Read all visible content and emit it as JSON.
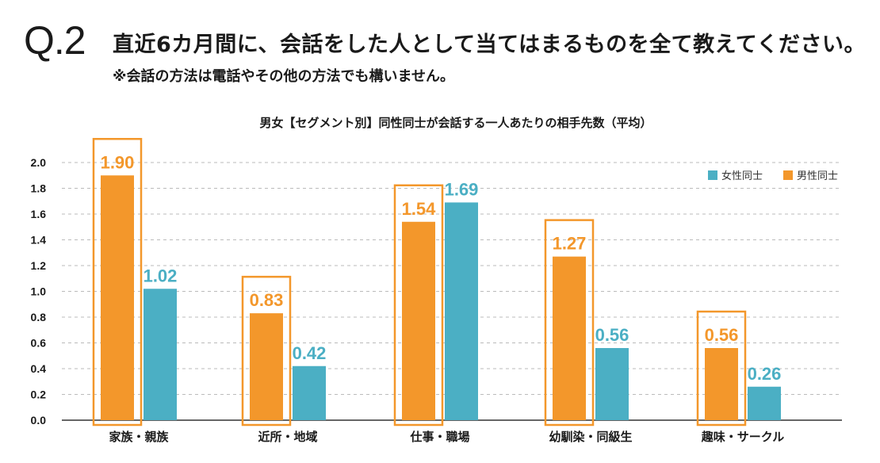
{
  "header": {
    "q_label": "Q.2",
    "question": "直近6カ月間に、会話をした人として当てはまるものを全て教えてください。",
    "note": "※会話の方法は電話やその他の方法でも構いません。"
  },
  "colors": {
    "female": "#4bafc4",
    "male": "#f3972b",
    "highlight_box": "#f3972b",
    "grid": "#bbbbbb",
    "axis": "#333333"
  },
  "chart_data": {
    "type": "bar",
    "title": "男女【セグメント別】同性同士が会話する一人あたりの相手先数（平均）",
    "categories": [
      "家族・親族",
      "近所・地域",
      "仕事・職場",
      "幼馴染・同級生",
      "趣味・サークル"
    ],
    "series": [
      {
        "name": "男性同士",
        "values": [
          1.9,
          0.83,
          1.54,
          1.27,
          0.56
        ]
      },
      {
        "name": "女性同士",
        "values": [
          1.02,
          0.42,
          1.69,
          0.56,
          0.26
        ]
      }
    ],
    "legend": [
      "女性同士",
      "男性同士"
    ],
    "legend_position": "top-right",
    "yticks": [
      "0.0",
      "0.2",
      "0.4",
      "0.6",
      "0.8",
      "1.0",
      "1.2",
      "1.4",
      "1.6",
      "1.8",
      "2.0"
    ],
    "ylim": [
      0,
      2.0
    ],
    "grid": true,
    "xlabel": "",
    "ylabel": ""
  }
}
